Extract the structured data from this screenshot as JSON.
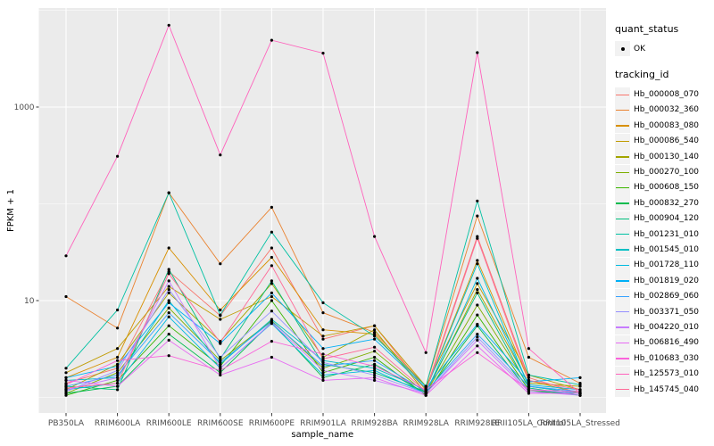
{
  "chart_data": {
    "type": "line",
    "title": "",
    "x": {
      "label": "sample_name",
      "categories": [
        "PB350LA",
        "RRIM600LA",
        "RRIM600LE",
        "RRIM600SE",
        "RRIM600PE",
        "RRIM901LA",
        "RRIM928BA",
        "RRIM928LA",
        "RRIM928LE",
        "RRII105LA_Control",
        "RRII105LA_Stressed"
      ]
    },
    "y": {
      "label": "FPKM + 1",
      "scale": "log10",
      "tick_values": [
        10,
        1000
      ],
      "tick_labels": [
        "10",
        "1000"
      ],
      "minor_grid_values": [
        1,
        100,
        10000
      ],
      "ylim": [
        0.85,
        11500
      ]
    },
    "legend": {
      "position": "right",
      "quant_status_title": "quant_status",
      "quant_status_items": [
        {
          "label": "OK",
          "symbol": "point",
          "color": "#000000"
        }
      ],
      "tracking_id_title": "tracking_id"
    },
    "grid": true,
    "colors": {
      "panel_bg": "#EBEBEB",
      "grid": "#FFFFFF",
      "axis_text": "#4D4D4D",
      "tick_mark": "#333333",
      "point": "#000000",
      "legend_key_bg": "#F2F2F2"
    },
    "series": [
      {
        "name": "Hb_000008_070",
        "color": "#F8766D",
        "values": [
          1.4,
          2.0,
          20,
          7.0,
          35,
          4.0,
          5.5,
          1.2,
          46,
          1.6,
          1.1
        ]
      },
      {
        "name": "Hb_000032_360",
        "color": "#EA8331",
        "values": [
          11,
          5.2,
          130,
          24,
          92,
          7.5,
          4.7,
          1.3,
          75,
          2.6,
          1.4
        ]
      },
      {
        "name": "Hb_000083_080",
        "color": "#D89000",
        "values": [
          1.6,
          2.6,
          35,
          8.0,
          28,
          5.0,
          4.5,
          1.2,
          26,
          1.5,
          1.1
        ]
      },
      {
        "name": "Hb_000086_540",
        "color": "#C09B00",
        "values": [
          1.8,
          3.2,
          14,
          6.4,
          11,
          4.3,
          5.5,
          1.3,
          15,
          1.7,
          1.2
        ]
      },
      {
        "name": "Hb_000130_140",
        "color": "#A3A500",
        "values": [
          1.2,
          2.2,
          12,
          3.8,
          15,
          2.6,
          5.0,
          1.1,
          13,
          1.4,
          1.3
        ]
      },
      {
        "name": "Hb_000270_100",
        "color": "#7CAE00",
        "values": [
          1.1,
          1.8,
          8.4,
          2.4,
          6.2,
          2.0,
          3.0,
          1.1,
          9.0,
          1.3,
          1.1
        ]
      },
      {
        "name": "Hb_000608_150",
        "color": "#39B600",
        "values": [
          1.05,
          1.5,
          5.5,
          2.1,
          10,
          1.8,
          2.6,
          1.05,
          7.1,
          1.2,
          1.05
        ]
      },
      {
        "name": "Hb_000832_270",
        "color": "#00BB4E",
        "values": [
          1.1,
          1.3,
          4.5,
          1.8,
          6.0,
          1.6,
          2.2,
          1.1,
          5.5,
          1.15,
          1.1
        ]
      },
      {
        "name": "Hb_000904_120",
        "color": "#00BF7D",
        "values": [
          1.3,
          1.2,
          21,
          2.5,
          16,
          2.2,
          1.8,
          1.15,
          12,
          1.25,
          1.05
        ]
      },
      {
        "name": "Hb_001231_010",
        "color": "#00C1A3",
        "values": [
          2.0,
          8.0,
          130,
          7.1,
          51,
          9.5,
          4.3,
          1.3,
          107,
          1.7,
          1.35
        ]
      },
      {
        "name": "Hb_001545_010",
        "color": "#00BFC4",
        "values": [
          1.5,
          1.6,
          10,
          2.2,
          6.4,
          2.4,
          2.0,
          1.2,
          24,
          1.3,
          1.1
        ]
      },
      {
        "name": "Hb_001728_110",
        "color": "#00BAE0",
        "values": [
          1.2,
          1.4,
          6.8,
          2.0,
          5.8,
          1.7,
          1.9,
          1.1,
          17,
          1.35,
          1.2
        ]
      },
      {
        "name": "Hb_001819_020",
        "color": "#00B0F6",
        "values": [
          1.6,
          2.1,
          9.5,
          3.6,
          12,
          3.2,
          4.0,
          1.25,
          5.7,
          1.45,
          1.6
        ]
      },
      {
        "name": "Hb_002869_060",
        "color": "#35A2FF",
        "values": [
          1.3,
          1.7,
          7.5,
          2.3,
          6.1,
          2.1,
          2.4,
          1.15,
          4.5,
          1.3,
          1.15
        ]
      },
      {
        "name": "Hb_003371_050",
        "color": "#9590FF",
        "values": [
          1.15,
          1.9,
          13,
          2.6,
          7.8,
          2.3,
          1.7,
          1.1,
          4.2,
          1.2,
          1.1
        ]
      },
      {
        "name": "Hb_004220_010",
        "color": "#C77CFF",
        "values": [
          1.2,
          1.6,
          16,
          2.0,
          5.9,
          1.9,
          1.5,
          1.1,
          3.9,
          1.15,
          1.05
        ]
      },
      {
        "name": "Hb_006816_490",
        "color": "#E76BF3",
        "values": [
          1.5,
          1.3,
          3.9,
          1.7,
          2.6,
          1.5,
          1.6,
          1.05,
          3.4,
          1.1,
          1.1
        ]
      },
      {
        "name": "Hb_010683_030",
        "color": "#FA62DB",
        "values": [
          1.35,
          2.4,
          2.7,
          1.9,
          3.8,
          2.8,
          2.1,
          1.2,
          2.9,
          1.2,
          1.15
        ]
      },
      {
        "name": "Hb_125573_010",
        "color": "#FF62BC",
        "values": [
          29,
          310,
          7000,
          320,
          4900,
          3600,
          46,
          2.9,
          3650,
          3.2,
          1.1
        ]
      },
      {
        "name": "Hb_145745_040",
        "color": "#FF6A98",
        "values": [
          1.25,
          1.4,
          19,
          3.7,
          23,
          2.5,
          3.3,
          1.15,
          44,
          1.5,
          1.2
        ]
      }
    ]
  }
}
